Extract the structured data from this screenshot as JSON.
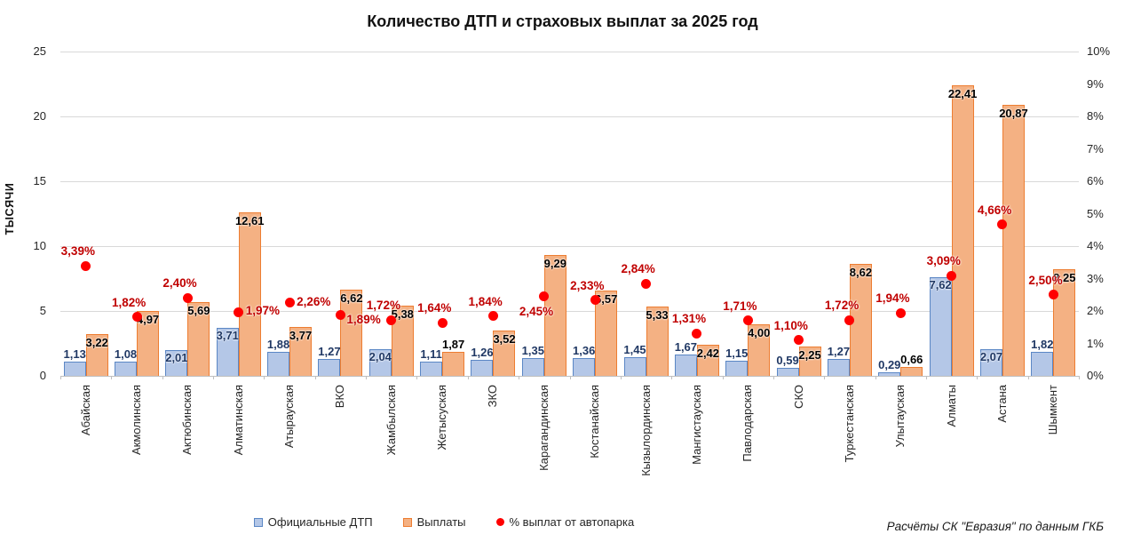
{
  "chart_data": {
    "type": "bar",
    "title": "Количество ДТП и страховых выплат за 2025 год",
    "categories": [
      "Абайская",
      "Акмолинская",
      "Актюбинская",
      "Алматинская",
      "Атырауская",
      "ВКО",
      "Жамбылская",
      "Жетысуская",
      "ЗКО",
      "Карагандинская",
      "Костанайская",
      "Кызылординская",
      "Мангистауская",
      "Павлодарская",
      "СКО",
      "Туркестанская",
      "Улытауская",
      "Алматы",
      "Астана",
      "Шымкент"
    ],
    "series": [
      {
        "name": "Официальные ДТП",
        "type": "bar",
        "axis": "left",
        "values": [
          1.13,
          1.08,
          2.01,
          3.71,
          1.88,
          1.27,
          2.04,
          1.11,
          1.26,
          1.35,
          1.36,
          1.45,
          1.67,
          1.15,
          0.59,
          1.27,
          0.29,
          7.62,
          2.07,
          1.82
        ]
      },
      {
        "name": "Выплаты",
        "type": "bar",
        "axis": "left",
        "values": [
          3.22,
          4.97,
          5.69,
          12.61,
          3.77,
          6.62,
          5.38,
          1.87,
          3.52,
          9.29,
          6.57,
          5.33,
          2.42,
          4.0,
          2.25,
          8.62,
          0.66,
          22.41,
          20.87,
          8.25
        ]
      },
      {
        "name": "% выплат от автопарка",
        "type": "scatter",
        "axis": "right",
        "values": [
          3.39,
          1.82,
          2.4,
          1.97,
          2.26,
          1.89,
          1.72,
          1.64,
          1.84,
          2.45,
          2.33,
          2.84,
          1.31,
          1.71,
          1.1,
          1.72,
          1.94,
          3.09,
          4.66,
          2.5
        ],
        "label_pos": [
          "above",
          "above",
          "above",
          "right",
          "right",
          "rightlow",
          "above",
          "above",
          "above",
          "below",
          "above",
          "above",
          "above",
          "above",
          "above",
          "above",
          "above",
          "above",
          "above",
          "above"
        ]
      }
    ],
    "left_axis": {
      "label": "ТЫСЯЧИ",
      "ticks": [
        0,
        5,
        10,
        15,
        20,
        25
      ],
      "range": [
        0,
        25
      ]
    },
    "right_axis": {
      "ticks": [
        "0%",
        "1%",
        "2%",
        "3%",
        "4%",
        "5%",
        "6%",
        "7%",
        "8%",
        "9%",
        "10%"
      ],
      "range": [
        0,
        10
      ]
    },
    "legend_position": "bottom",
    "grid": true
  },
  "legend": {
    "items": [
      {
        "label": "Официальные ДТП"
      },
      {
        "label": "Выплаты"
      },
      {
        "label": "% выплат от автопарка"
      }
    ]
  },
  "footer": "Расчёты СК \"Евразия\" по данным ГКБ",
  "colors": {
    "dtp_fill": "#b4c7e7",
    "dtp_border": "#5b87c5",
    "dtp_label": "#203864",
    "payout_fill": "#f4b183",
    "payout_border": "#ed7d31",
    "payout_label": "#000000",
    "pct_dot": "#ff0000",
    "pct_label": "#c00000",
    "gridline": "#d9d9d9",
    "axis_text": "#262626"
  }
}
